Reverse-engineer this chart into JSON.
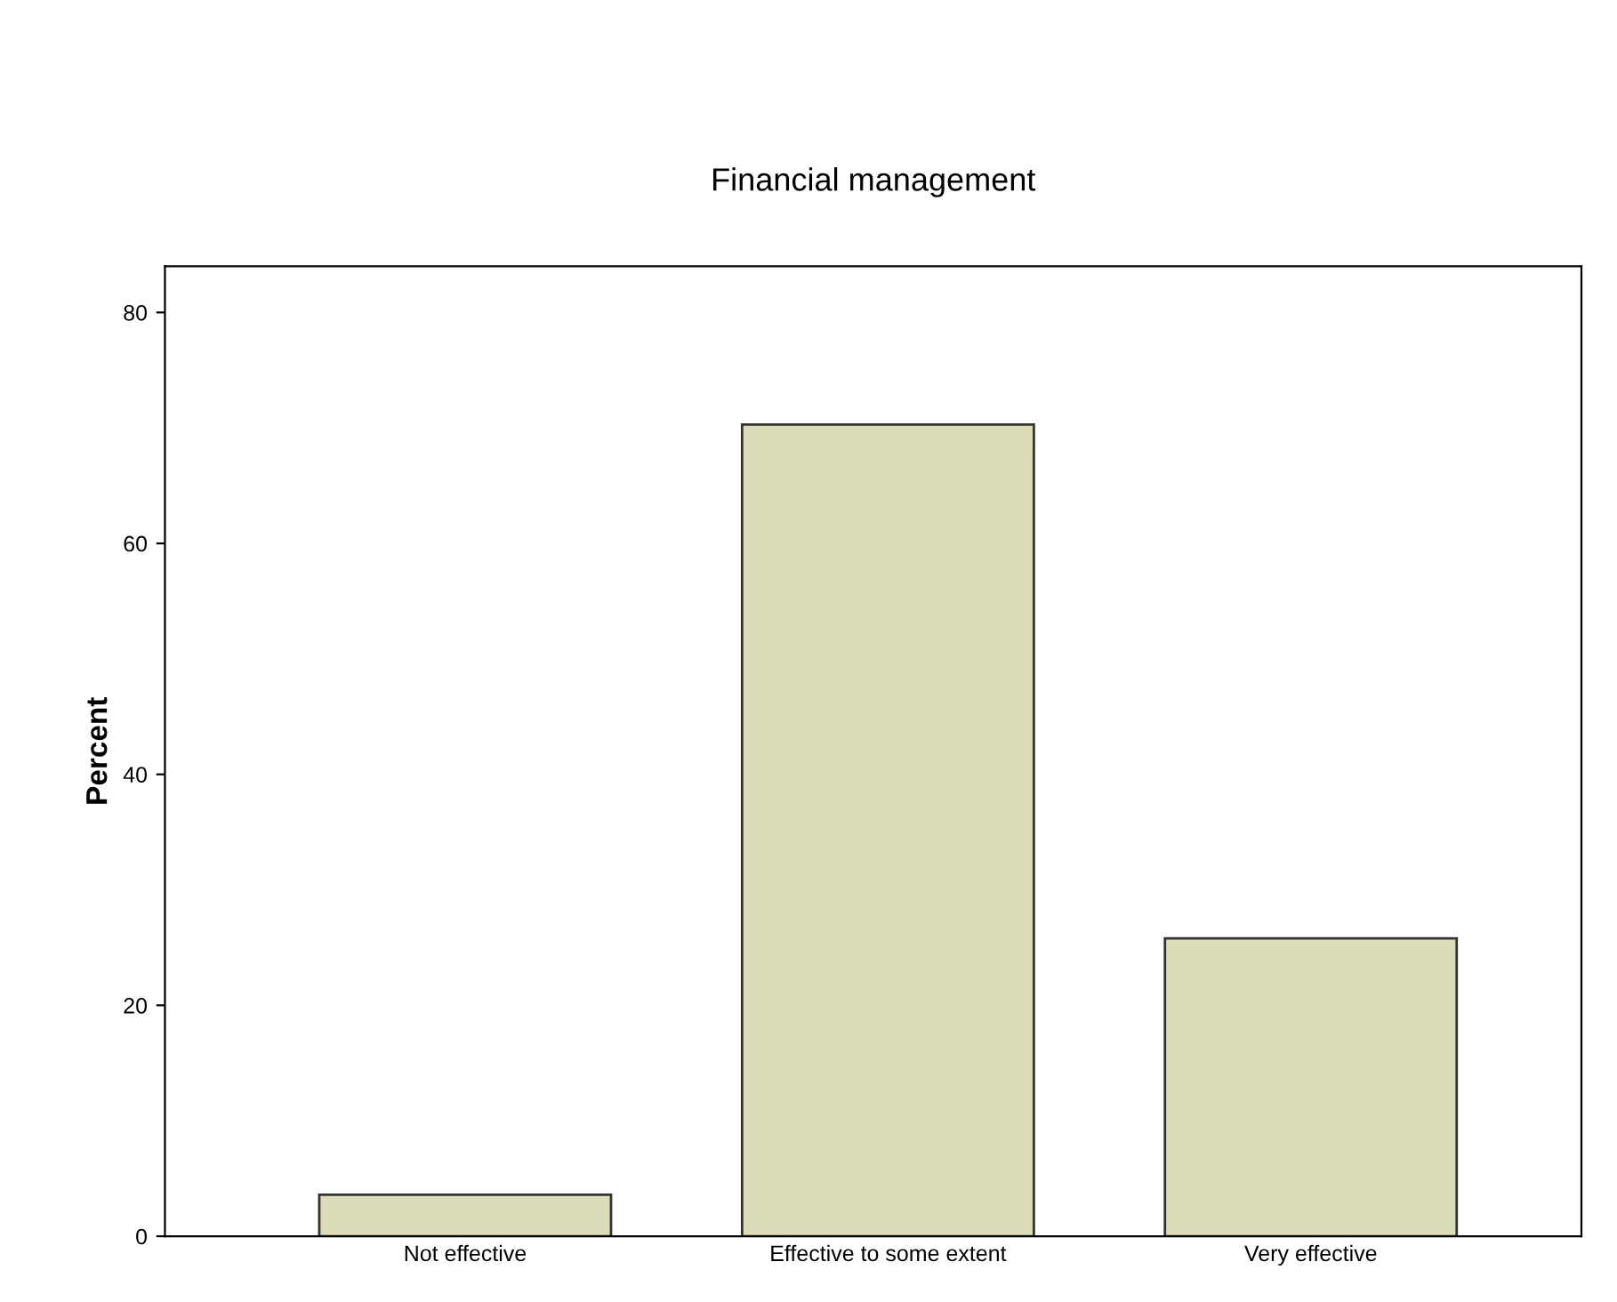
{
  "chart_data": {
    "type": "bar",
    "title": "Financial management",
    "ylabel": "Percent",
    "categories": [
      "Not effective",
      "Effective to some extent",
      "Very effective"
    ],
    "values": [
      3.6,
      70.3,
      25.8
    ],
    "color": "#dcdcb8",
    "ylim": [
      0,
      84
    ],
    "yticks": [
      0,
      20,
      40,
      60,
      80
    ],
    "grid": false
  }
}
